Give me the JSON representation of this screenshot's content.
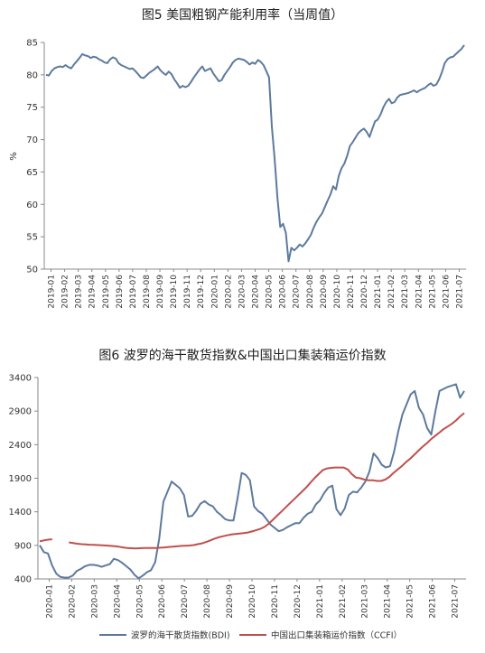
{
  "chart_data": [
    {
      "type": "line",
      "title": "图5 美国粗钢产能利用率（当周值）",
      "ylabel": "%",
      "ylim": [
        50,
        85
      ],
      "yticks": [
        50,
        55,
        60,
        65,
        70,
        75,
        80,
        85
      ],
      "xticks": [
        "2019-01",
        "2019-02",
        "2019-03",
        "2019-04",
        "2019-05",
        "2019-06",
        "2019-07",
        "2019-08",
        "2019-09",
        "2019-10",
        "2019-11",
        "2019-12",
        "2020-01",
        "2020-02",
        "2020-03",
        "2020-04",
        "2020-05",
        "2020-06",
        "2020-07",
        "2020-08",
        "2020-09",
        "2020-10",
        "2020-11",
        "2020-12",
        "2021-01",
        "2021-02",
        "2021-03",
        "2021-04",
        "2021-05",
        "2021-06",
        "2021-07"
      ],
      "colors": {
        "line": "#5d7a9e",
        "axis": "#888888"
      },
      "series": [
        {
          "values": [
            80.0,
            79.9,
            80.6,
            81.0,
            81.2,
            81.3,
            81.2,
            81.5,
            81.2,
            81.0,
            81.6,
            82.1,
            82.6,
            83.2,
            83.0,
            82.9,
            82.6,
            82.8,
            82.7,
            82.4,
            82.2,
            81.9,
            81.8,
            82.4,
            82.7,
            82.5,
            81.8,
            81.5,
            81.3,
            81.1,
            80.9,
            81.0,
            80.6,
            80.1,
            79.6,
            79.5,
            79.9,
            80.3,
            80.6,
            80.9,
            81.3,
            80.7,
            80.3,
            80.0,
            80.5,
            80.1,
            79.3,
            78.7,
            78.0,
            78.3,
            78.1,
            78.3,
            78.9,
            79.6,
            80.2,
            80.8,
            81.3,
            80.6,
            80.8,
            81.0,
            80.2,
            79.6,
            79.0,
            79.2,
            80.0,
            80.6,
            81.2,
            81.9,
            82.3,
            82.5,
            82.4,
            82.3,
            82.0,
            81.6,
            81.9,
            81.7,
            82.3,
            82.0,
            81.5,
            80.6,
            79.6,
            72.0,
            67.0,
            61.0,
            56.5,
            57.0,
            55.6,
            51.2,
            53.3,
            52.9,
            53.3,
            53.8,
            53.5,
            54.0,
            54.6,
            55.3,
            56.4,
            57.3,
            58.0,
            58.6,
            59.6,
            60.6,
            61.5,
            62.8,
            62.3,
            64.4,
            65.6,
            66.3,
            67.5,
            69.0,
            69.6,
            70.3,
            71.0,
            71.4,
            71.7,
            71.2,
            70.4,
            71.6,
            72.8,
            73.1,
            73.9,
            75.0,
            75.8,
            76.3,
            75.6,
            75.8,
            76.5,
            76.9,
            77.0,
            77.1,
            77.2,
            77.4,
            77.6,
            77.3,
            77.6,
            77.8,
            78.0,
            78.4,
            78.7,
            78.3,
            78.5,
            79.3,
            80.4,
            81.8,
            82.4,
            82.7,
            82.8,
            83.2,
            83.6,
            84.0,
            84.6
          ]
        }
      ]
    },
    {
      "type": "line",
      "title": "图6 波罗的海干散货指数&中国出口集装箱运价指数",
      "ylim": [
        400,
        3400
      ],
      "yticks": [
        400,
        900,
        1400,
        1900,
        2400,
        2900,
        3400
      ],
      "xticks": [
        "2020-01",
        "2020-02",
        "2020-03",
        "2020-04",
        "2020-05",
        "2020-06",
        "2020-07",
        "2020-08",
        "2020-09",
        "2020-10",
        "2020-11",
        "2020-12",
        "2021-01",
        "2021-02",
        "2021-03",
        "2021-04",
        "2021-05",
        "2021-06",
        "2021-07"
      ],
      "legend_position": "bottom",
      "series": [
        {
          "name": "波罗的海干散货指数(BDI)",
          "color": "#5d7a9e",
          "values": [
            900,
            800,
            780,
            600,
            480,
            430,
            420,
            420,
            450,
            520,
            550,
            590,
            610,
            610,
            600,
            580,
            600,
            620,
            700,
            680,
            640,
            590,
            540,
            460,
            410,
            450,
            500,
            530,
            650,
            1000,
            1550,
            1700,
            1850,
            1800,
            1750,
            1650,
            1330,
            1340,
            1420,
            1520,
            1560,
            1510,
            1480,
            1400,
            1350,
            1290,
            1270,
            1270,
            1600,
            1980,
            1950,
            1870,
            1480,
            1410,
            1370,
            1290,
            1210,
            1160,
            1110,
            1130,
            1170,
            1200,
            1230,
            1230,
            1310,
            1370,
            1400,
            1510,
            1570,
            1680,
            1760,
            1790,
            1440,
            1350,
            1450,
            1650,
            1700,
            1690,
            1760,
            1850,
            2000,
            2270,
            2200,
            2100,
            2060,
            2080,
            2300,
            2600,
            2850,
            3000,
            3150,
            3200,
            2950,
            2850,
            2650,
            2550,
            2900,
            3200,
            3230,
            3260,
            3280,
            3300,
            3100,
            3200
          ]
        },
        {
          "name": "中国出口集装箱运价指数（CCFI）",
          "color": "#c0504d",
          "values": [
            960,
            975,
            985,
            990,
            null,
            null,
            null,
            945,
            935,
            925,
            918,
            915,
            910,
            908,
            905,
            902,
            898,
            893,
            888,
            880,
            870,
            862,
            858,
            855,
            858,
            860,
            860,
            860,
            862,
            866,
            870,
            876,
            880,
            885,
            892,
            895,
            898,
            905,
            918,
            930,
            950,
            975,
            1000,
            1020,
            1035,
            1050,
            1062,
            1070,
            1075,
            1082,
            1092,
            1108,
            1125,
            1145,
            1175,
            1220,
            1280,
            1340,
            1400,
            1460,
            1520,
            1580,
            1640,
            1700,
            1760,
            1830,
            1900,
            1960,
            2020,
            2045,
            2055,
            2060,
            2060,
            2060,
            2030,
            1960,
            1910,
            1900,
            1880,
            1870,
            1870,
            1860,
            1860,
            1880,
            1920,
            1980,
            2030,
            2080,
            2140,
            2190,
            2250,
            2310,
            2370,
            2420,
            2480,
            2530,
            2580,
            2630,
            2670,
            2710,
            2760,
            2820,
            2870
          ]
        }
      ]
    }
  ]
}
